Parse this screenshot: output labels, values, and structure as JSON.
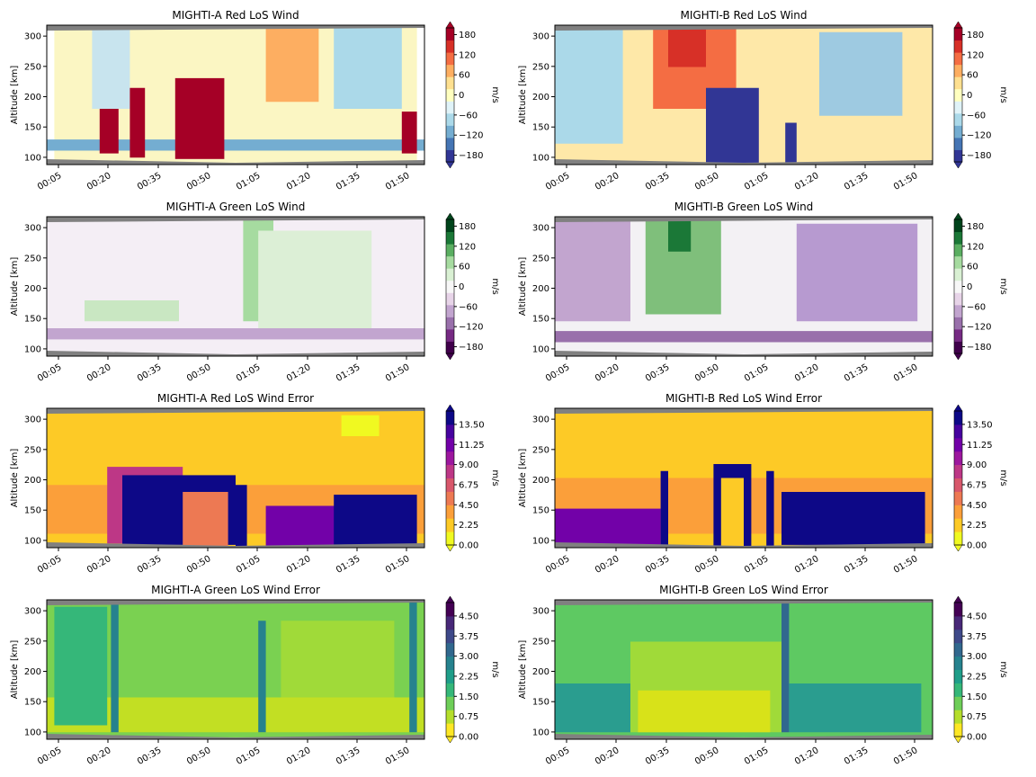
{
  "figure": {
    "colors": {
      "axes": "#000000",
      "mask": "#808080",
      "background": "#ffffff"
    },
    "time_ticks": [
      "00:05",
      "00:20",
      "00:35",
      "00:50",
      "01:05",
      "01:20",
      "01:35",
      "01:50"
    ],
    "altitude_ticks": [
      100,
      150,
      200,
      250,
      300
    ],
    "altitude_range": [
      88,
      318
    ],
    "ylabel": "Altitude [km]",
    "unit_label": "m/s"
  },
  "chart_data": [
    {
      "type": "heatmap",
      "title": "MIGHTI-A Red LoS Wind",
      "colormap": "RdYlBu_r",
      "colorbar_ticks": [
        "180",
        "120",
        "60",
        "0",
        "−60",
        "−120",
        "−180"
      ],
      "clim": [
        -200,
        200
      ],
      "ylabel": "Altitude [km]",
      "colorbar_label": "m/s"
    },
    {
      "type": "heatmap",
      "title": "MIGHTI-B Red LoS Wind",
      "colormap": "RdYlBu_r",
      "colorbar_ticks": [
        "180",
        "120",
        "60",
        "0",
        "−60",
        "−120",
        "−180"
      ],
      "clim": [
        -200,
        200
      ],
      "ylabel": "Altitude [km]",
      "colorbar_label": "m/s"
    },
    {
      "type": "heatmap",
      "title": "MIGHTI-A Green LoS Wind",
      "colormap": "PRGn",
      "colorbar_ticks": [
        "180",
        "120",
        "60",
        "0",
        "−60",
        "−120",
        "−180"
      ],
      "clim": [
        -200,
        200
      ],
      "ylabel": "Altitude [km]",
      "colorbar_label": "m/s"
    },
    {
      "type": "heatmap",
      "title": "MIGHTI-B Green LoS Wind",
      "colormap": "PRGn",
      "colorbar_ticks": [
        "180",
        "120",
        "60",
        "0",
        "−60",
        "−120",
        "−180"
      ],
      "clim": [
        -200,
        200
      ],
      "ylabel": "Altitude [km]",
      "colorbar_label": "m/s"
    },
    {
      "type": "heatmap",
      "title": "MIGHTI-A Red LoS Wind Error",
      "colormap": "plasma_r",
      "colorbar_ticks": [
        "13.50",
        "11.25",
        "9.00",
        "6.75",
        "4.50",
        "2.25",
        "0.00"
      ],
      "clim": [
        0,
        15
      ],
      "ylabel": "Altitude [km]",
      "colorbar_label": "m/s"
    },
    {
      "type": "heatmap",
      "title": "MIGHTI-B Red LoS Wind Error",
      "colormap": "plasma_r",
      "colorbar_ticks": [
        "13.50",
        "11.25",
        "9.00",
        "6.75",
        "4.50",
        "2.25",
        "0.00"
      ],
      "clim": [
        0,
        15
      ],
      "ylabel": "Altitude [km]",
      "colorbar_label": "m/s"
    },
    {
      "type": "heatmap",
      "title": "MIGHTI-A Green LoS Wind Error",
      "colormap": "viridis_r",
      "colorbar_ticks": [
        "4.50",
        "3.75",
        "3.00",
        "2.25",
        "1.50",
        "0.75",
        "0.00"
      ],
      "clim": [
        0,
        5
      ],
      "ylabel": "Altitude [km]",
      "colorbar_label": "m/s"
    },
    {
      "type": "heatmap",
      "title": "MIGHTI-B Green LoS Wind Error",
      "colormap": "viridis_r",
      "colorbar_ticks": [
        "4.50",
        "3.75",
        "3.00",
        "2.25",
        "1.50",
        "0.75",
        "0.00"
      ],
      "clim": [
        0,
        5
      ],
      "ylabel": "Altitude [km]",
      "colorbar_label": "m/s"
    }
  ]
}
